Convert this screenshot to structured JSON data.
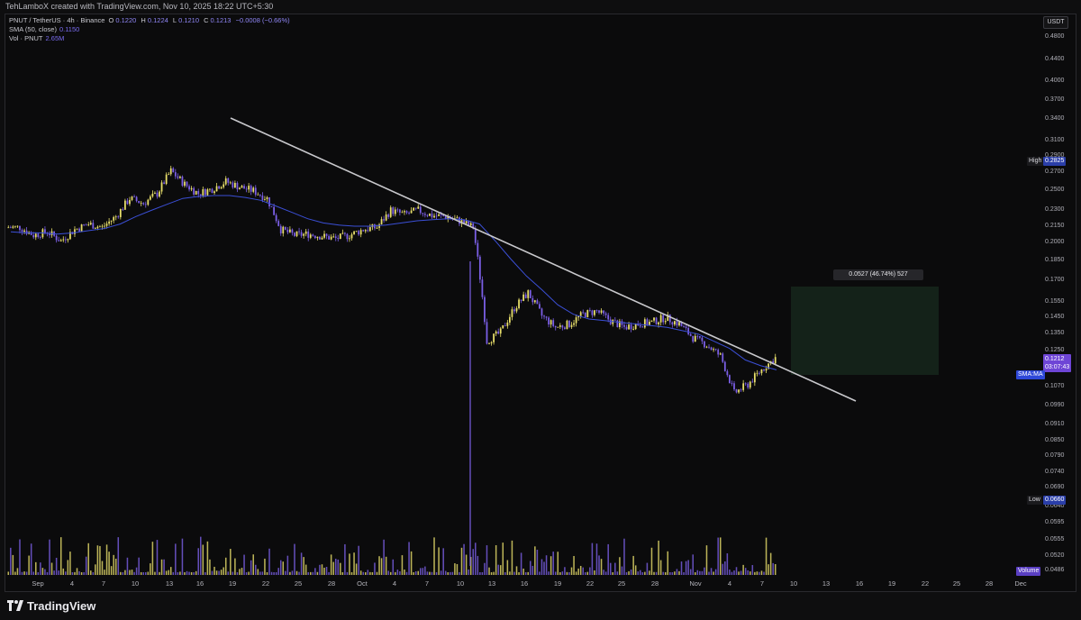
{
  "header": {
    "credit": "TehLamboX created with TradingView.com, Nov 10, 2025 18:22 UTC+5:30"
  },
  "legend": {
    "symbol": "PNUT / TetherUS · 4h · Binance",
    "ohlc": {
      "o_label": "O",
      "o": "0.1220",
      "h_label": "H",
      "h": "0.1224",
      "l_label": "L",
      "l": "0.1210",
      "c_label": "C",
      "c": "0.1213",
      "chg": "−0.0008 (−0.66%)"
    },
    "sma_label": "SMA (50, close)",
    "sma_value": "0.1150",
    "vol_label": "Vol · PNUT",
    "vol_value": "2.65M"
  },
  "currency": "USDT",
  "price_axis": {
    "ticks": [
      "0.4800",
      "0.4400",
      "0.4000",
      "0.3700",
      "0.3400",
      "0.3100",
      "0.2900",
      "0.2700",
      "0.2500",
      "0.2300",
      "0.2150",
      "0.2000",
      "0.1850",
      "0.1700",
      "0.1550",
      "0.1450",
      "0.1350",
      "0.1250",
      "0.1150",
      "0.1070",
      "0.0990",
      "0.0910",
      "0.0850",
      "0.0790",
      "0.0740",
      "0.0690",
      "0.0640",
      "0.0595",
      "0.0555",
      "0.0520",
      "0.0486"
    ],
    "high_label": "High",
    "high_value": "0.2825",
    "low_label": "Low",
    "low_value": "0.0660",
    "current_price": "0.1212",
    "countdown": "03:07:43",
    "sma_tag": "SMA:MA",
    "volume_tag": "Volume"
  },
  "measure": {
    "text": "0.0527 (46.74%) 527"
  },
  "date_axis": [
    "Sep",
    "4",
    "7",
    "10",
    "13",
    "16",
    "19",
    "22",
    "25",
    "28",
    "Oct",
    "4",
    "7",
    "10",
    "13",
    "16",
    "19",
    "22",
    "25",
    "28",
    "Nov",
    "4",
    "7",
    "10",
    "13",
    "16",
    "19",
    "22",
    "25",
    "28",
    "Dec"
  ],
  "brand": "TradingView",
  "colors": {
    "up": "#e8df6b",
    "down": "#7b5fe6",
    "sma": "#3b5bdb",
    "trendline": "#c8c8cc",
    "target_zone": "#18261a"
  },
  "chart_data": {
    "type": "candlestick",
    "series": [
      {
        "name": "PNUT / TetherUS",
        "close": [
          0.212,
          0.205,
          0.208,
          0.2,
          0.21,
          0.215,
          0.212,
          0.222,
          0.24,
          0.235,
          0.245,
          0.27,
          0.255,
          0.245,
          0.25,
          0.258,
          0.252,
          0.248,
          0.24,
          0.21,
          0.205,
          0.206,
          0.204,
          0.202,
          0.205,
          0.21,
          0.212,
          0.228,
          0.224,
          0.228,
          0.223,
          0.222,
          0.218,
          0.212,
          0.13,
          0.135,
          0.15,
          0.16,
          0.145,
          0.138,
          0.14,
          0.146,
          0.148,
          0.142,
          0.138,
          0.14,
          0.141,
          0.144,
          0.14,
          0.132,
          0.128,
          0.122,
          0.104,
          0.108,
          0.115,
          0.121
        ]
      },
      {
        "name": "SMA (50, close)",
        "close": [
          0.208,
          0.207,
          0.207,
          0.206,
          0.207,
          0.209,
          0.211,
          0.215,
          0.222,
          0.228,
          0.234,
          0.24,
          0.242,
          0.243,
          0.243,
          0.241,
          0.238,
          0.232,
          0.226,
          0.22,
          0.216,
          0.214,
          0.213,
          0.213,
          0.214,
          0.216,
          0.218,
          0.219,
          0.22,
          0.219,
          0.215,
          0.2,
          0.185,
          0.172,
          0.162,
          0.152,
          0.146,
          0.143,
          0.142,
          0.141,
          0.14,
          0.139,
          0.138,
          0.136,
          0.134,
          0.13,
          0.126,
          0.12,
          0.117,
          0.115
        ]
      }
    ],
    "high": 0.2825,
    "low": 0.066,
    "ylim": [
      0.0486,
      0.48
    ],
    "yscale": "log",
    "trendline": {
      "from": [
        "Aug 30",
        0.34
      ],
      "to": [
        "Nov 20",
        0.099
      ]
    },
    "target_zone": {
      "from": 0.115,
      "to": 0.165,
      "label": "0.0527 (46.74%) 527"
    }
  }
}
